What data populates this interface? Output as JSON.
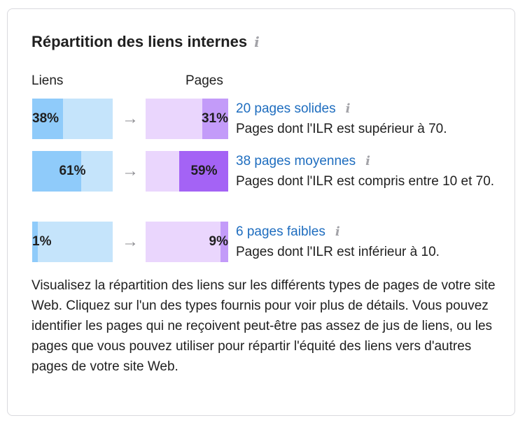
{
  "widget": {
    "title": "Répartition des liens internes",
    "info_icon": "i",
    "col_links": "Liens",
    "col_pages": "Pages",
    "arrow": "→",
    "rows": [
      {
        "links_pct_label": "38%",
        "links_fraction": 0.38,
        "pages_pct_label": "31%",
        "pages_fraction": 0.31,
        "pages_color": "#c39bf9",
        "link_text": "20 pages solides",
        "description": "Pages dont l'ILR est supérieur à 70."
      },
      {
        "links_pct_label": "61%",
        "links_fraction": 0.61,
        "pages_pct_label": "59%",
        "pages_fraction": 0.59,
        "pages_color": "#a463f5",
        "link_text": "38 pages moyennes",
        "description": "Pages dont l'ILR est compris entre 10 et 70."
      },
      {
        "links_pct_label": "1%",
        "links_fraction": 0.01,
        "pages_pct_label": "9%",
        "pages_fraction": 0.09,
        "pages_color": "#c39bf9",
        "link_text": "6 pages faibles",
        "description": "Pages dont l'ILR est inférieur à 10."
      }
    ],
    "paragraph": "Visualisez la répartition des liens sur les différents types de pages de votre site Web. Cliquez sur l'un des types fournis pour voir plus de détails. Vous pouvez identifier les pages qui ne reçoivent peut-être pas assez de jus de liens, ou les pages que vous pouvez utiliser pour répartir l'équité des liens vers d'autres pages de votre site Web."
  }
}
